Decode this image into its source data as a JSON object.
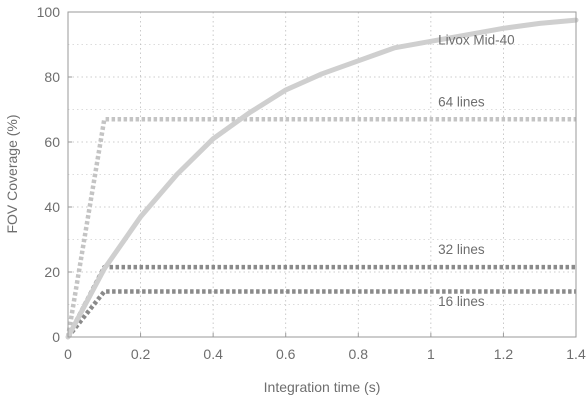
{
  "chart_data": {
    "type": "line",
    "xlabel": "Integration time (s)",
    "ylabel": "FOV Coverage (%)",
    "xlim": [
      0,
      1.4
    ],
    "ylim": [
      0,
      100
    ],
    "x_ticks": [
      0,
      0.2,
      0.4,
      0.6,
      0.8,
      1,
      1.2,
      1.4
    ],
    "x_tick_labels": [
      "0",
      "0.2",
      "0.4",
      "0.6",
      "0.8",
      "1",
      "1.2",
      "1.4"
    ],
    "y_ticks": [
      0,
      20,
      40,
      60,
      80,
      100
    ],
    "y_tick_labels": [
      "0",
      "20",
      "40",
      "60",
      "80",
      "100"
    ],
    "grid": "dotted",
    "series": [
      {
        "name": "Livox Mid-40",
        "style": "solid",
        "color": "#cfcfcf",
        "x": [
          0,
          0.1,
          0.2,
          0.3,
          0.4,
          0.5,
          0.6,
          0.7,
          0.8,
          0.9,
          1.0,
          1.1,
          1.2,
          1.3,
          1.4
        ],
        "values": [
          0,
          21,
          37,
          50,
          61,
          69,
          76,
          81,
          85,
          89,
          91,
          93,
          95,
          96.5,
          97.5
        ]
      },
      {
        "name": "64 lines",
        "style": "dotted",
        "color": "#c4c4c4",
        "x": [
          0,
          0.1,
          1.4
        ],
        "values": [
          0,
          67,
          67
        ]
      },
      {
        "name": "32 lines",
        "style": "dotted",
        "color": "#8a8a8a",
        "x": [
          0,
          0.1,
          1.4
        ],
        "values": [
          0,
          21.5,
          21.5
        ]
      },
      {
        "name": "16 lines",
        "style": "dotted",
        "color": "#8a8a8a",
        "x": [
          0,
          0.1,
          1.4
        ],
        "values": [
          0,
          14,
          14
        ]
      }
    ]
  }
}
